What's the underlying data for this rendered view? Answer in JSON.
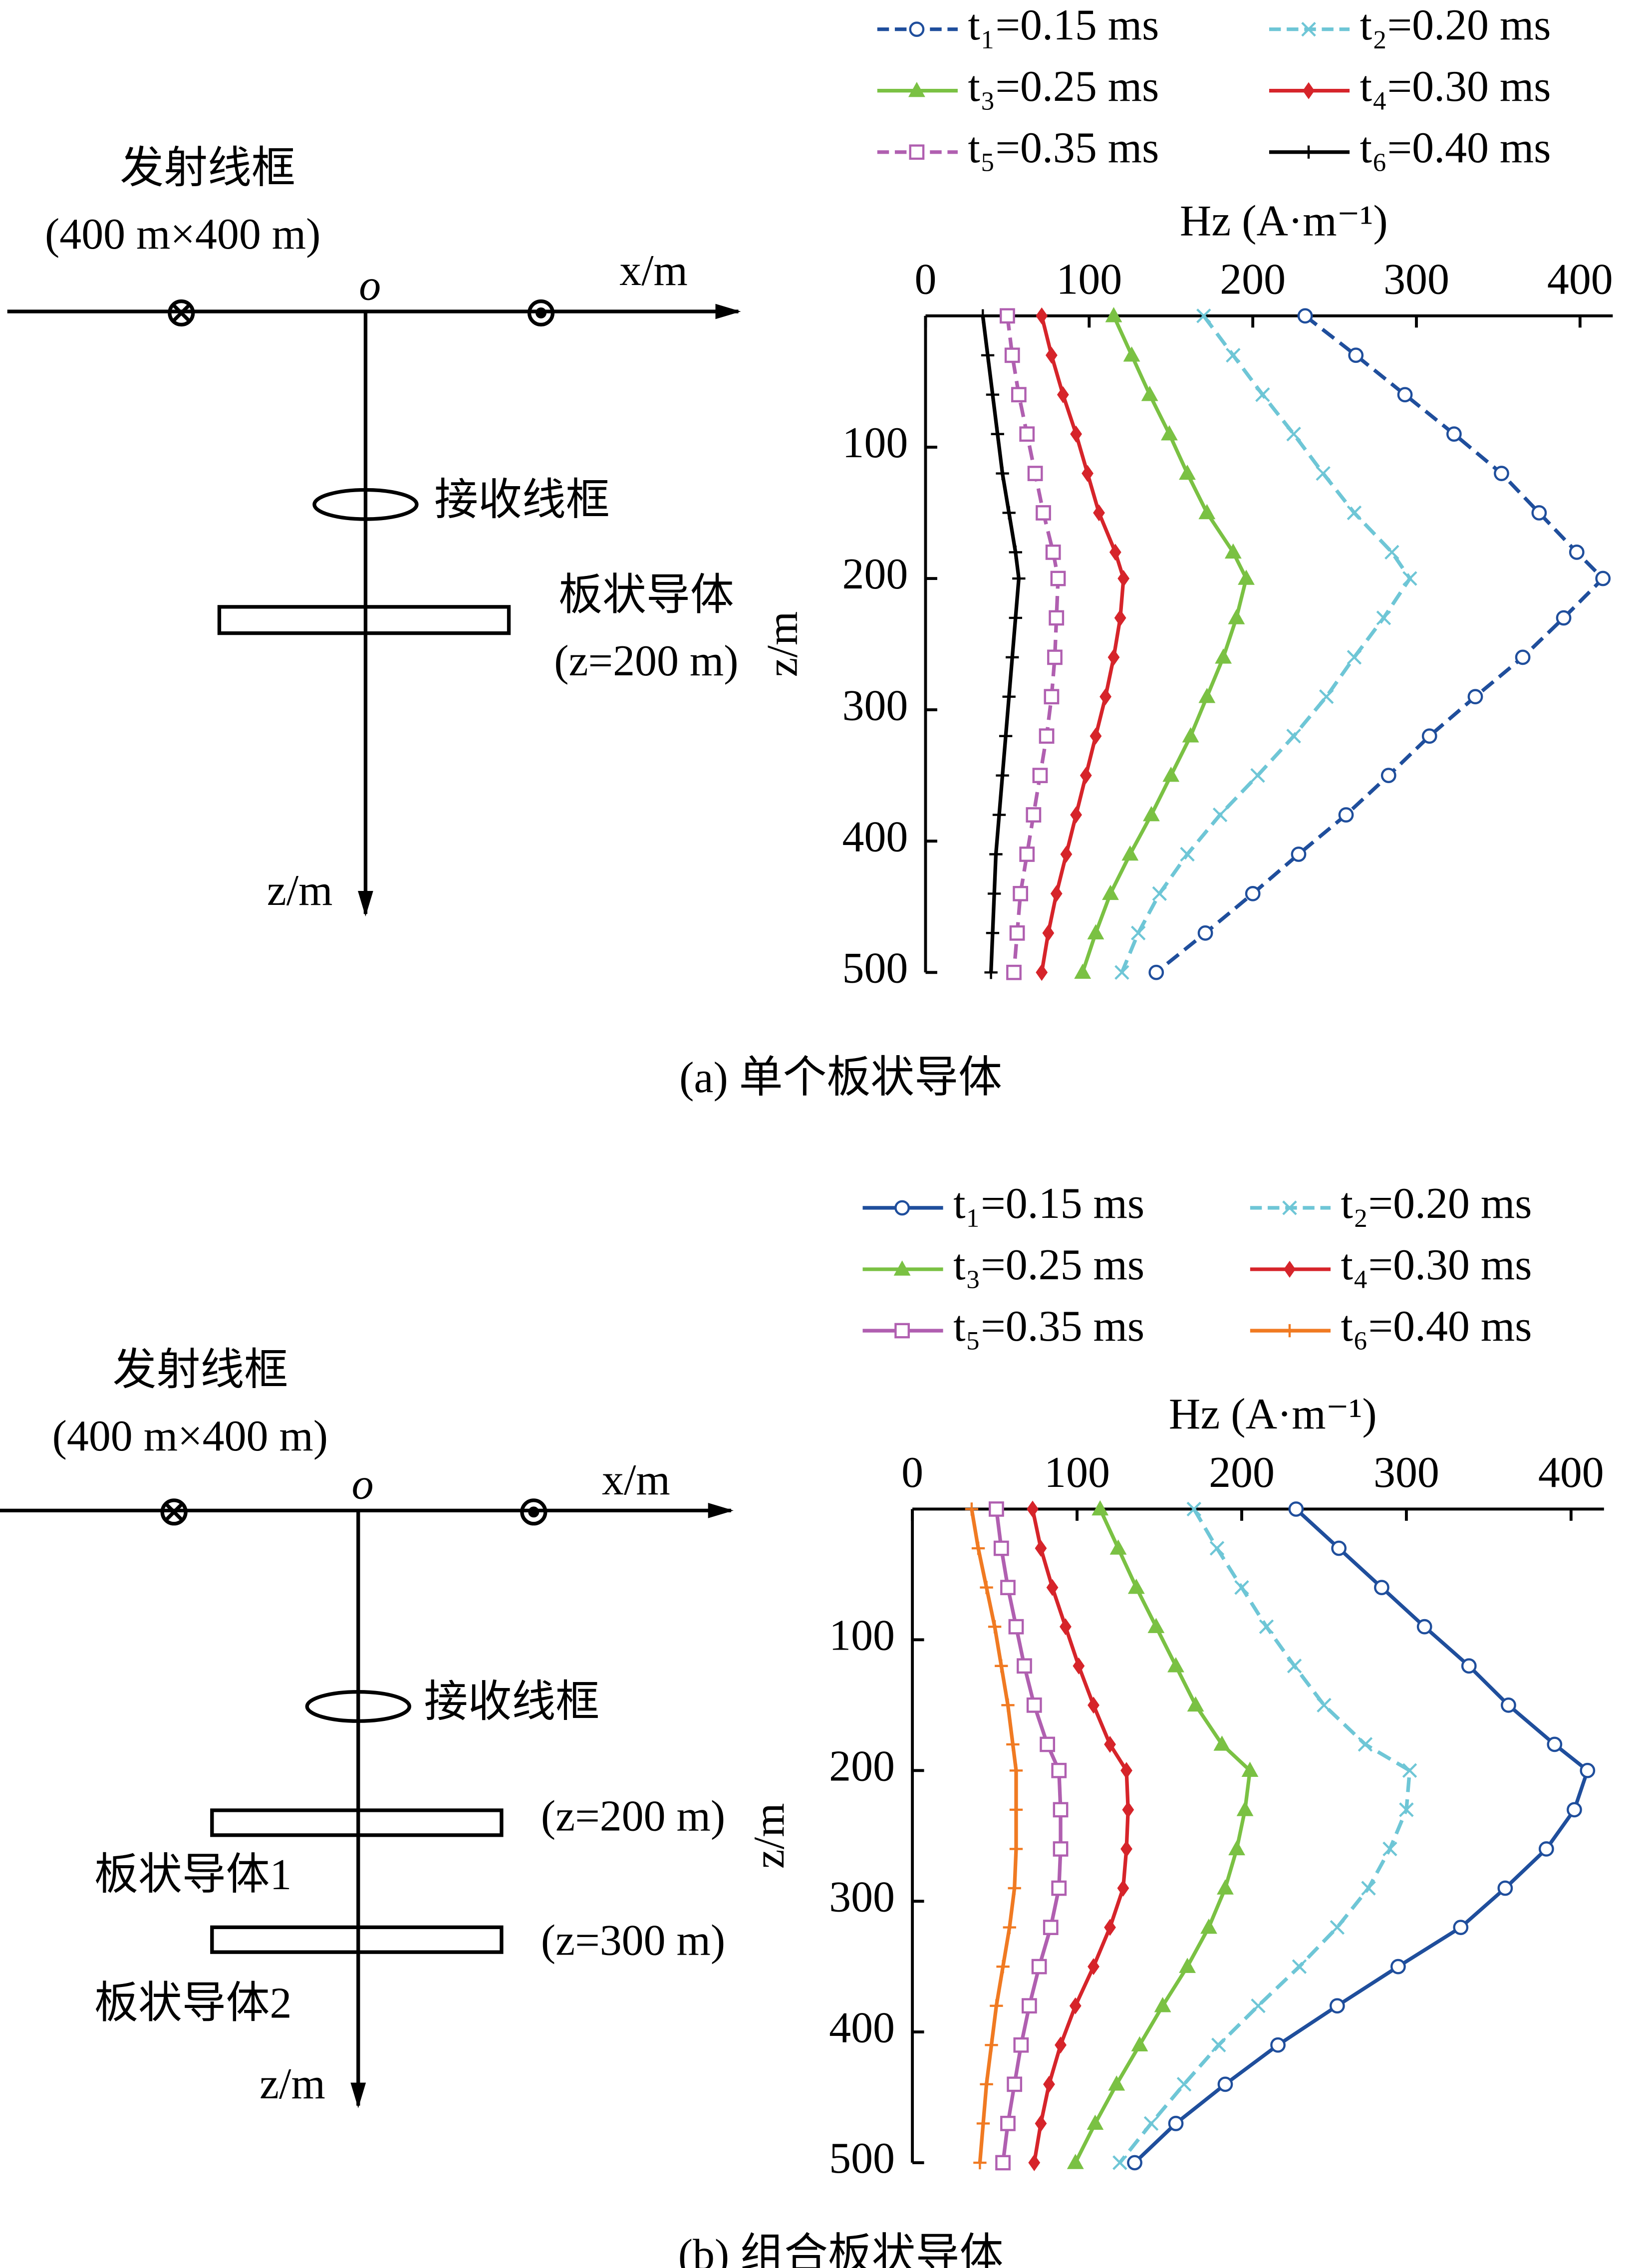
{
  "chart_data": [
    {
      "type": "line",
      "x_label": "Hz (A·m⁻¹)",
      "y_label": "z/m",
      "caption": "(a)  单个板状导体",
      "xlim": [
        0,
        420
      ],
      "ylim": [
        0,
        500
      ],
      "y_reversed": true,
      "x_axis_top": true,
      "xticks": [
        0,
        100,
        200,
        300,
        400
      ],
      "yticks": [
        100,
        200,
        300,
        400,
        500
      ],
      "depth": [
        0,
        30,
        60,
        90,
        120,
        150,
        180,
        200,
        230,
        260,
        290,
        320,
        350,
        380,
        410,
        440,
        470,
        500
      ],
      "series": [
        {
          "name": "t₁=0.15 ms",
          "color": "#1f4e9c",
          "dashed": true,
          "marker": "circle",
          "values": [
            232,
            263,
            293,
            323,
            352,
            375,
            398,
            414,
            390,
            365,
            336,
            308,
            283,
            257,
            228,
            200,
            171,
            141
          ]
        },
        {
          "name": "t₂=0.20 ms",
          "color": "#6ec6d6",
          "dashed": true,
          "marker": "cross",
          "values": [
            170,
            188,
            206,
            225,
            243,
            262,
            285,
            296,
            280,
            262,
            245,
            225,
            203,
            180,
            160,
            143,
            130,
            120
          ]
        },
        {
          "name": "t₃=0.25 ms",
          "color": "#7ac143",
          "dashed": false,
          "marker": "triangle",
          "values": [
            115,
            126,
            137,
            149,
            160,
            172,
            188,
            196,
            190,
            182,
            172,
            162,
            150,
            138,
            125,
            113,
            104,
            96
          ]
        },
        {
          "name": "t₄=0.30 ms",
          "color": "#d6242a",
          "dashed": false,
          "marker": "diamond",
          "values": [
            71,
            77,
            84,
            92,
            99,
            106,
            116,
            121,
            119,
            115,
            110,
            104,
            98,
            92,
            86,
            80,
            75,
            71
          ]
        },
        {
          "name": "t₅=0.35 ms",
          "color": "#b05fb0",
          "dashed": true,
          "marker": "square",
          "values": [
            50,
            53,
            57,
            62,
            67,
            72,
            78,
            81,
            80,
            79,
            77,
            74,
            70,
            66,
            62,
            58,
            56,
            54
          ]
        },
        {
          "name": "t₆=0.40 ms",
          "color": "#000000",
          "dashed": false,
          "marker": "plus",
          "values": [
            35,
            38,
            41,
            44,
            47,
            51,
            55,
            57,
            55,
            53,
            51,
            49,
            47,
            45,
            43,
            42,
            41,
            40
          ]
        }
      ]
    },
    {
      "type": "line",
      "x_label": "Hz (A·m⁻¹)",
      "y_label": "z/m",
      "caption": "(b)  组合板状导体",
      "xlim": [
        0,
        420
      ],
      "ylim": [
        0,
        500
      ],
      "y_reversed": true,
      "x_axis_top": true,
      "xticks": [
        0,
        100,
        200,
        300,
        400
      ],
      "yticks": [
        100,
        200,
        300,
        400,
        500
      ],
      "depth": [
        0,
        30,
        60,
        90,
        120,
        150,
        180,
        200,
        230,
        260,
        290,
        320,
        350,
        380,
        410,
        440,
        470,
        500
      ],
      "series": [
        {
          "name": "t₁=0.15 ms",
          "color": "#1f4e9c",
          "dashed": false,
          "marker": "circle",
          "values": [
            233,
            259,
            285,
            311,
            338,
            362,
            390,
            410,
            402,
            385,
            360,
            333,
            295,
            258,
            222,
            190,
            160,
            135
          ]
        },
        {
          "name": "t₂=0.20 ms",
          "color": "#6ec6d6",
          "dashed": true,
          "marker": "cross",
          "values": [
            171,
            185,
            200,
            215,
            232,
            250,
            275,
            302,
            300,
            290,
            277,
            258,
            235,
            210,
            186,
            165,
            145,
            126
          ]
        },
        {
          "name": "t₃=0.25 ms",
          "color": "#7ac143",
          "dashed": false,
          "marker": "triangle",
          "values": [
            114,
            125,
            136,
            148,
            160,
            172,
            188,
            205,
            202,
            197,
            190,
            180,
            167,
            152,
            138,
            124,
            111,
            99
          ]
        },
        {
          "name": "t₄=0.30 ms",
          "color": "#d6242a",
          "dashed": false,
          "marker": "diamond",
          "values": [
            73,
            78,
            85,
            93,
            101,
            110,
            120,
            130,
            131,
            130,
            128,
            120,
            110,
            99,
            90,
            83,
            78,
            74
          ]
        },
        {
          "name": "t₅=0.35 ms",
          "color": "#b05fb0",
          "dashed": false,
          "marker": "square",
          "values": [
            51,
            54,
            58,
            63,
            68,
            74,
            82,
            89,
            90,
            90,
            89,
            84,
            77,
            71,
            66,
            62,
            58,
            55
          ]
        },
        {
          "name": "t₆=0.40 ms",
          "color": "#f07a22",
          "dashed": false,
          "marker": "plus",
          "values": [
            36,
            40,
            45,
            50,
            54,
            58,
            61,
            63,
            63,
            63,
            62,
            59,
            55,
            51,
            48,
            45,
            43,
            41
          ]
        }
      ]
    }
  ],
  "diagrams": [
    {
      "transmitter": "发射线框",
      "loop_size": "(400 m×400 m)",
      "origin": "o",
      "x_axis": "x/m",
      "receiver": "接收线框",
      "plate": "板状导体",
      "plate_depth": "(z=200 m)",
      "z_axis": "z/m"
    },
    {
      "transmitter": "发射线框",
      "loop_size": "(400 m×400 m)",
      "origin": "o",
      "x_axis": "x/m",
      "receiver": "接收线框",
      "plate1_depth": "(z=200 m)",
      "plate1": "板状导体1",
      "plate2_depth": "(z=300 m)",
      "plate2": "板状导体2",
      "z_axis": "z/m"
    }
  ]
}
